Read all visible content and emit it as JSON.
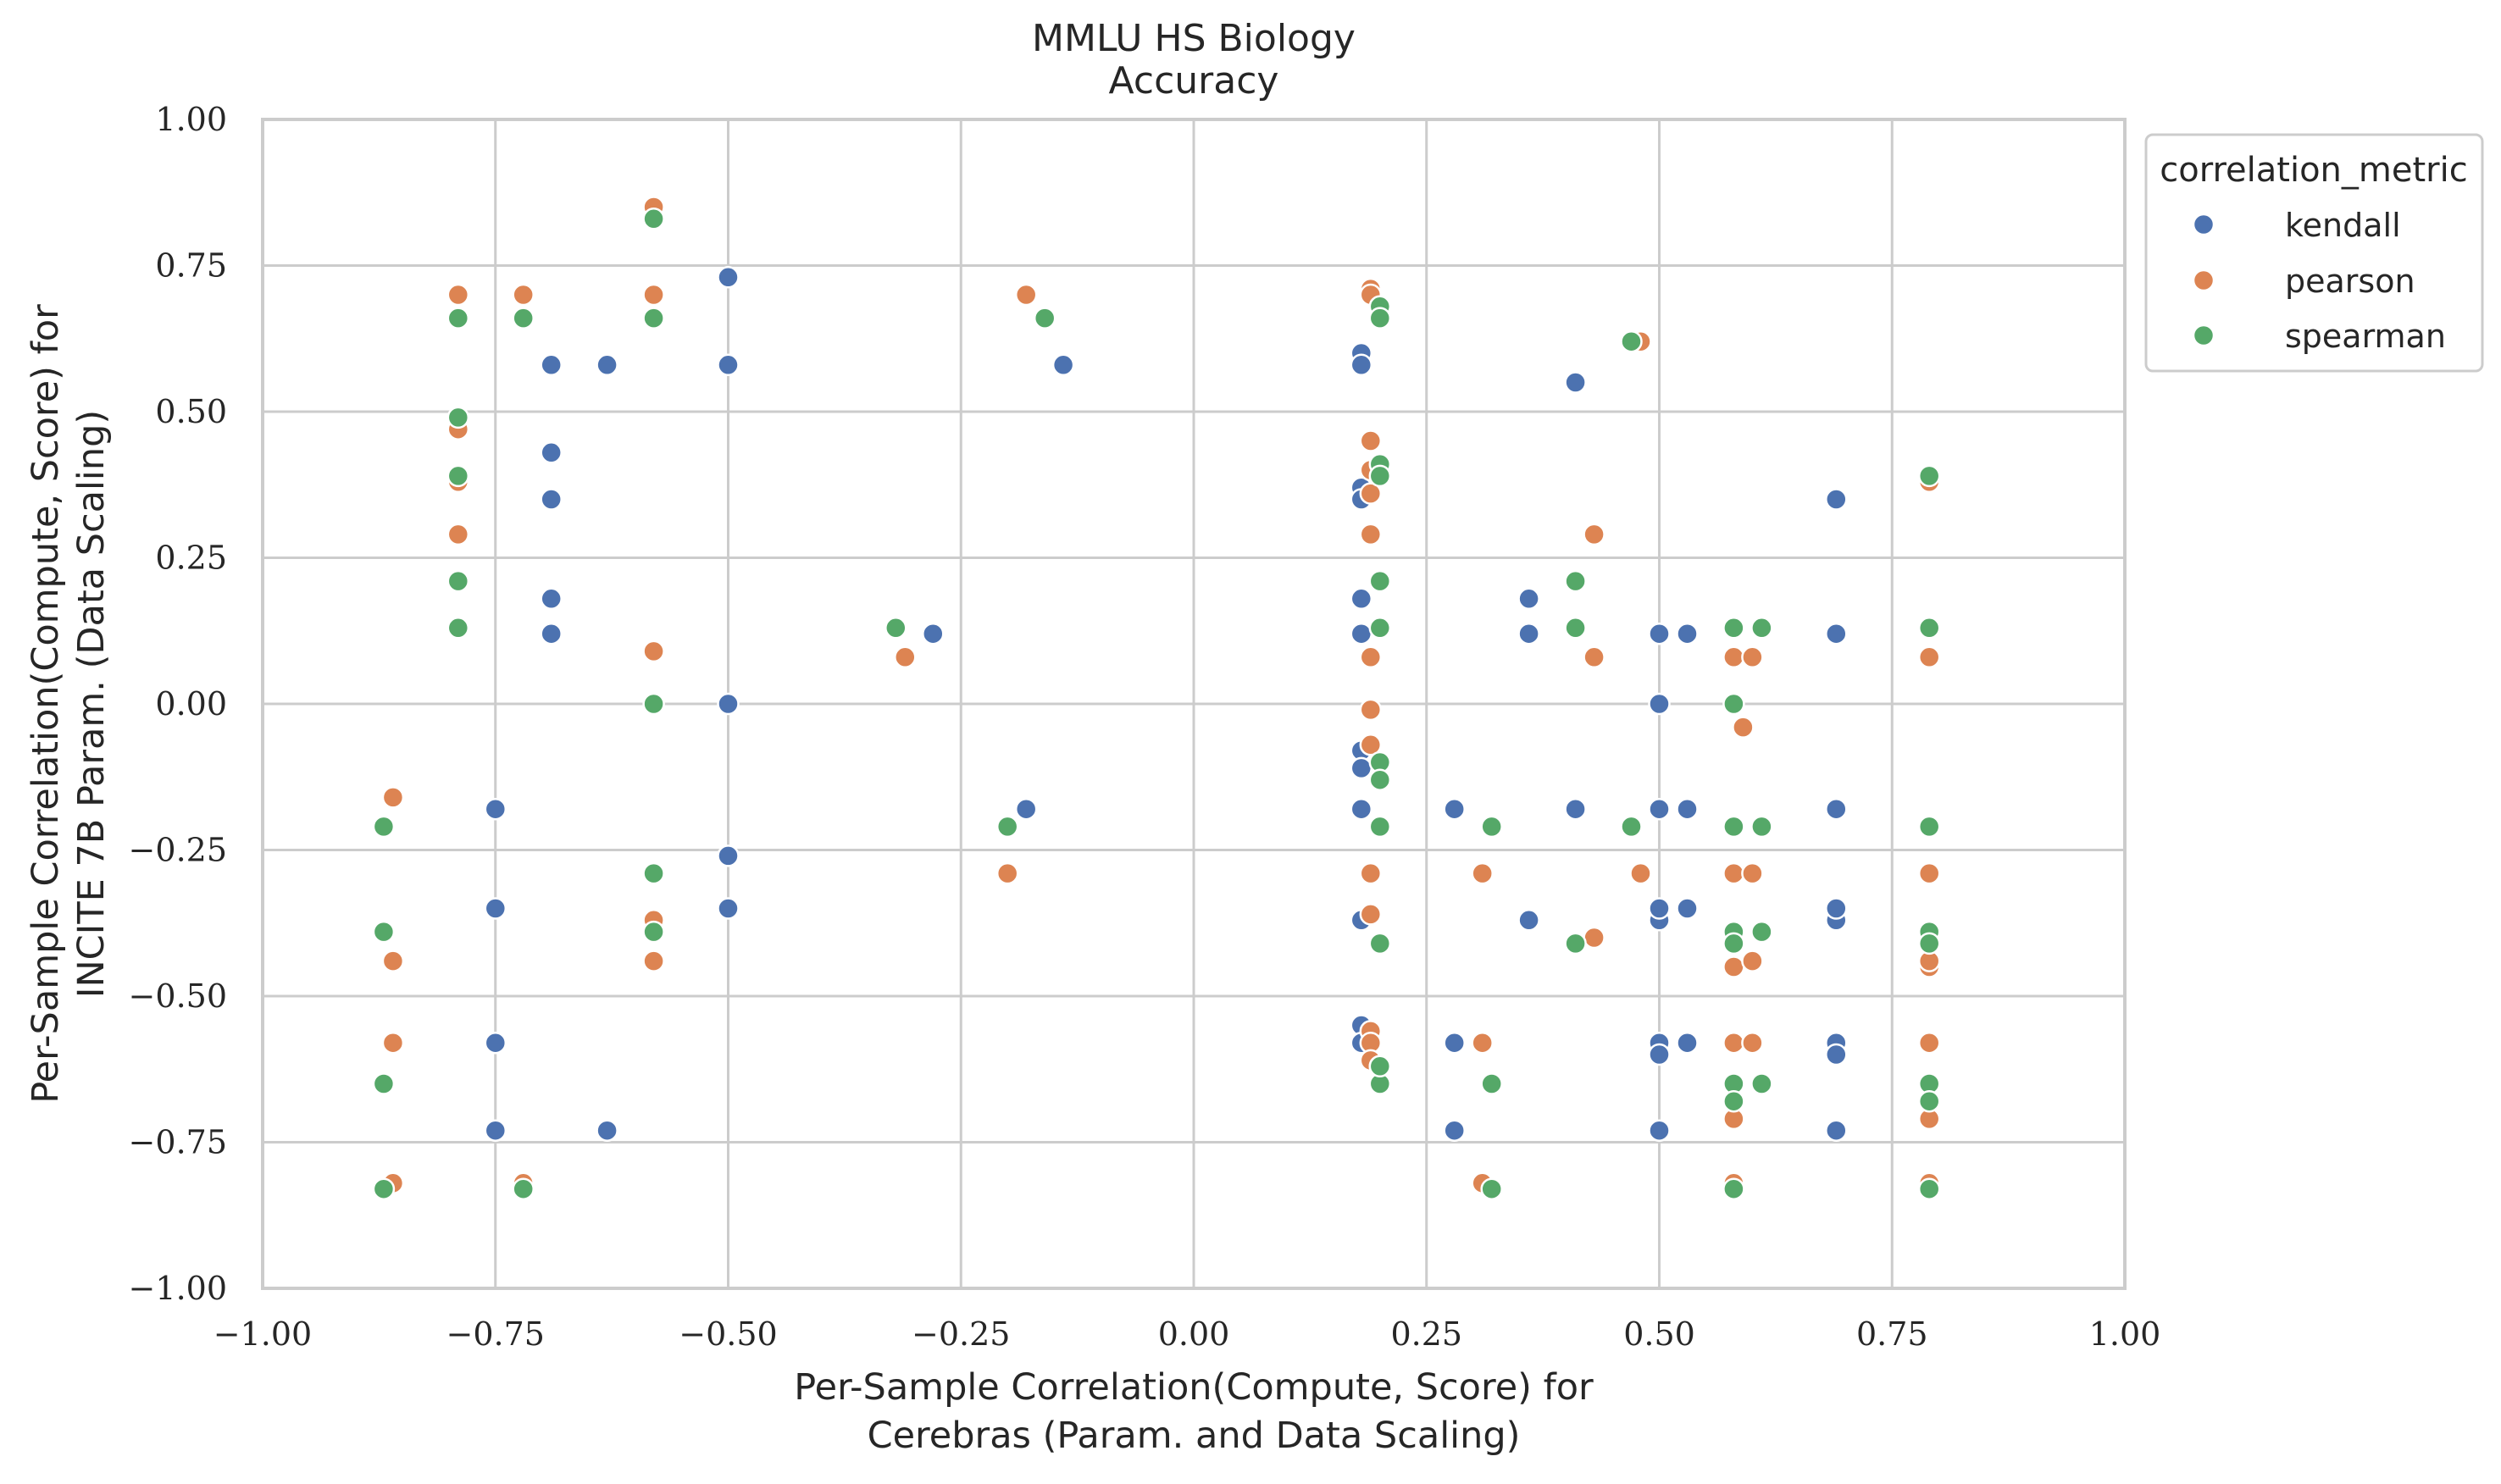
{
  "chart_data": {
    "type": "scatter",
    "title": "MMLU HS Biology",
    "subtitle": "Accuracy",
    "xlabel_lines": [
      "Per-Sample Correlation(Compute, Score) for",
      "Cerebras (Param. and Data Scaling)"
    ],
    "ylabel_lines": [
      "Per-Sample Correlation(Compute, Score) for",
      "INCITE 7B Param. (Data Scaling)"
    ],
    "xlim": [
      -1.0,
      1.0
    ],
    "ylim": [
      -1.0,
      1.0
    ],
    "xticks": [
      -1.0,
      -0.75,
      -0.5,
      -0.25,
      0.0,
      0.25,
      0.5,
      0.75,
      1.0
    ],
    "yticks": [
      -1.0,
      -0.75,
      -0.5,
      -0.25,
      0.0,
      0.25,
      0.5,
      0.75,
      1.0
    ],
    "xtick_labels": [
      "−1.00",
      "−0.75",
      "−0.50",
      "−0.25",
      "0.00",
      "0.25",
      "0.50",
      "0.75",
      "1.00"
    ],
    "ytick_labels": [
      "−1.00",
      "−0.75",
      "−0.50",
      "−0.25",
      "0.00",
      "0.25",
      "0.50",
      "0.75",
      "1.00"
    ],
    "grid": true,
    "legend": {
      "title": "correlation_metric",
      "placement": "outside-right-top"
    },
    "series": [
      {
        "name": "kendall",
        "color": "#4c72b0",
        "points": [
          [
            -0.5,
            0.73
          ],
          [
            -0.69,
            0.58
          ],
          [
            -0.63,
            0.58
          ],
          [
            -0.5,
            0.58
          ],
          [
            -0.14,
            0.58
          ],
          [
            -0.69,
            0.43
          ],
          [
            -0.69,
            0.35
          ],
          [
            -0.69,
            0.18
          ],
          [
            -0.69,
            0.12
          ],
          [
            -0.28,
            0.12
          ],
          [
            -0.5,
            0.0
          ],
          [
            -0.75,
            -0.18
          ],
          [
            -0.18,
            -0.18
          ],
          [
            -0.5,
            -0.26
          ],
          [
            -0.75,
            -0.35
          ],
          [
            -0.5,
            -0.35
          ],
          [
            -0.75,
            -0.58
          ],
          [
            -0.75,
            -0.73
          ],
          [
            -0.63,
            -0.73
          ],
          [
            0.18,
            0.6
          ],
          [
            0.18,
            0.58
          ],
          [
            0.41,
            0.55
          ],
          [
            0.18,
            0.37
          ],
          [
            0.18,
            0.35
          ],
          [
            0.69,
            0.35
          ],
          [
            0.18,
            0.18
          ],
          [
            0.36,
            0.18
          ],
          [
            0.18,
            0.12
          ],
          [
            0.36,
            0.12
          ],
          [
            0.5,
            0.12
          ],
          [
            0.53,
            0.12
          ],
          [
            0.69,
            0.12
          ],
          [
            0.5,
            0.0
          ],
          [
            0.18,
            -0.08
          ],
          [
            0.18,
            -0.11
          ],
          [
            0.18,
            -0.18
          ],
          [
            0.28,
            -0.18
          ],
          [
            0.41,
            -0.18
          ],
          [
            0.5,
            -0.18
          ],
          [
            0.53,
            -0.18
          ],
          [
            0.69,
            -0.18
          ],
          [
            0.18,
            -0.37
          ],
          [
            0.36,
            -0.37
          ],
          [
            0.5,
            -0.37
          ],
          [
            0.5,
            -0.35
          ],
          [
            0.53,
            -0.35
          ],
          [
            0.69,
            -0.37
          ],
          [
            0.69,
            -0.35
          ],
          [
            0.18,
            -0.55
          ],
          [
            0.18,
            -0.58
          ],
          [
            0.28,
            -0.58
          ],
          [
            0.5,
            -0.58
          ],
          [
            0.5,
            -0.6
          ],
          [
            0.53,
            -0.58
          ],
          [
            0.69,
            -0.58
          ],
          [
            0.69,
            -0.6
          ],
          [
            0.28,
            -0.73
          ],
          [
            0.5,
            -0.73
          ],
          [
            0.69,
            -0.73
          ]
        ]
      },
      {
        "name": "pearson",
        "color": "#dd8452",
        "points": [
          [
            -0.58,
            0.85
          ],
          [
            -0.79,
            0.7
          ],
          [
            -0.72,
            0.7
          ],
          [
            -0.58,
            0.7
          ],
          [
            -0.18,
            0.7
          ],
          [
            -0.79,
            0.47
          ],
          [
            -0.79,
            0.38
          ],
          [
            -0.79,
            0.29
          ],
          [
            -0.79,
            0.13
          ],
          [
            -0.58,
            0.09
          ],
          [
            -0.31,
            0.08
          ],
          [
            -0.86,
            -0.16
          ],
          [
            -0.58,
            -0.37
          ],
          [
            -0.2,
            -0.29
          ],
          [
            -0.86,
            -0.44
          ],
          [
            -0.58,
            -0.44
          ],
          [
            -0.86,
            -0.58
          ],
          [
            -0.86,
            -0.82
          ],
          [
            -0.72,
            -0.82
          ],
          [
            0.19,
            0.71
          ],
          [
            0.19,
            0.7
          ],
          [
            0.48,
            0.62
          ],
          [
            0.19,
            0.45
          ],
          [
            0.19,
            0.4
          ],
          [
            0.19,
            0.36
          ],
          [
            0.19,
            0.29
          ],
          [
            0.43,
            0.29
          ],
          [
            0.79,
            0.38
          ],
          [
            0.19,
            0.08
          ],
          [
            0.43,
            0.08
          ],
          [
            0.58,
            0.08
          ],
          [
            0.6,
            0.08
          ],
          [
            0.79,
            0.08
          ],
          [
            0.19,
            -0.01
          ],
          [
            0.19,
            -0.07
          ],
          [
            0.59,
            -0.04
          ],
          [
            0.19,
            -0.29
          ],
          [
            0.31,
            -0.29
          ],
          [
            0.48,
            -0.29
          ],
          [
            0.58,
            -0.29
          ],
          [
            0.6,
            -0.29
          ],
          [
            0.79,
            -0.29
          ],
          [
            0.19,
            -0.36
          ],
          [
            0.43,
            -0.4
          ],
          [
            0.58,
            -0.45
          ],
          [
            0.6,
            -0.44
          ],
          [
            0.79,
            -0.45
          ],
          [
            0.79,
            -0.44
          ],
          [
            0.19,
            -0.56
          ],
          [
            0.19,
            -0.58
          ],
          [
            0.19,
            -0.61
          ],
          [
            0.31,
            -0.58
          ],
          [
            0.58,
            -0.58
          ],
          [
            0.6,
            -0.58
          ],
          [
            0.79,
            -0.58
          ],
          [
            0.58,
            -0.71
          ],
          [
            0.79,
            -0.71
          ],
          [
            0.31,
            -0.82
          ],
          [
            0.58,
            -0.82
          ],
          [
            0.79,
            -0.82
          ]
        ]
      },
      {
        "name": "spearman",
        "color": "#55a868",
        "points": [
          [
            -0.58,
            0.83
          ],
          [
            -0.79,
            0.66
          ],
          [
            -0.72,
            0.66
          ],
          [
            -0.58,
            0.66
          ],
          [
            -0.16,
            0.66
          ],
          [
            -0.79,
            0.49
          ],
          [
            -0.79,
            0.39
          ],
          [
            -0.79,
            0.21
          ],
          [
            -0.79,
            0.13
          ],
          [
            -0.32,
            0.13
          ],
          [
            -0.58,
            0.0
          ],
          [
            -0.87,
            -0.21
          ],
          [
            -0.2,
            -0.21
          ],
          [
            -0.58,
            -0.29
          ],
          [
            -0.87,
            -0.39
          ],
          [
            -0.58,
            -0.39
          ],
          [
            -0.87,
            -0.65
          ],
          [
            -0.87,
            -0.83
          ],
          [
            -0.72,
            -0.83
          ],
          [
            0.2,
            0.68
          ],
          [
            0.2,
            0.66
          ],
          [
            0.47,
            0.62
          ],
          [
            0.2,
            0.41
          ],
          [
            0.2,
            0.39
          ],
          [
            0.79,
            0.39
          ],
          [
            0.2,
            0.21
          ],
          [
            0.41,
            0.21
          ],
          [
            0.2,
            0.13
          ],
          [
            0.41,
            0.13
          ],
          [
            0.58,
            0.13
          ],
          [
            0.61,
            0.13
          ],
          [
            0.79,
            0.13
          ],
          [
            0.58,
            0.0
          ],
          [
            0.2,
            -0.1
          ],
          [
            0.2,
            -0.13
          ],
          [
            0.2,
            -0.21
          ],
          [
            0.32,
            -0.21
          ],
          [
            0.47,
            -0.21
          ],
          [
            0.58,
            -0.21
          ],
          [
            0.61,
            -0.21
          ],
          [
            0.79,
            -0.21
          ],
          [
            0.2,
            -0.41
          ],
          [
            0.41,
            -0.41
          ],
          [
            0.58,
            -0.39
          ],
          [
            0.58,
            -0.41
          ],
          [
            0.61,
            -0.39
          ],
          [
            0.79,
            -0.39
          ],
          [
            0.79,
            -0.41
          ],
          [
            0.2,
            -0.62
          ],
          [
            0.2,
            -0.65
          ],
          [
            0.32,
            -0.65
          ],
          [
            0.58,
            -0.65
          ],
          [
            0.58,
            -0.68
          ],
          [
            0.61,
            -0.65
          ],
          [
            0.79,
            -0.65
          ],
          [
            0.79,
            -0.68
          ],
          [
            0.2,
            -0.62
          ],
          [
            0.32,
            -0.83
          ],
          [
            0.58,
            -0.83
          ],
          [
            0.79,
            -0.83
          ]
        ]
      }
    ]
  }
}
